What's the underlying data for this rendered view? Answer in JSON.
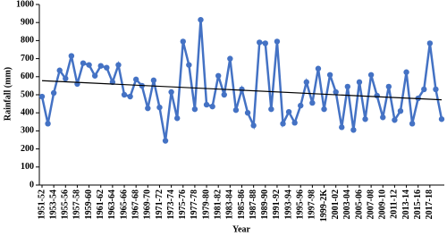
{
  "chart_data": {
    "type": "line",
    "x_label": "Year",
    "y_label": "Rainfall (mm)",
    "categories": [
      "1951-52",
      null,
      "1953-54",
      null,
      "1955-56",
      null,
      "1957-58",
      null,
      "1959-60",
      null,
      "1961-62",
      null,
      "1963-64",
      null,
      "1965-66",
      null,
      "1967-68",
      null,
      "1969-70",
      null,
      "1971-72",
      null,
      "1973-74",
      null,
      "1975-76",
      null,
      "1977-78",
      null,
      "1979-80",
      null,
      "1981-82",
      null,
      "1983-84",
      null,
      "1985-86",
      null,
      "1987-88",
      null,
      "1989-90",
      null,
      "1991-92",
      null,
      "1993-94",
      null,
      "1995-96",
      null,
      "1997-98",
      null,
      "1999-2K",
      null,
      "2001-02",
      null,
      "2003-04",
      null,
      "2005-06",
      null,
      "2007-08",
      null,
      "2009-10",
      null,
      "2011-12",
      null,
      "2013-14",
      null,
      "2015-16",
      null,
      "2017-18",
      null,
      null
    ],
    "series": [
      {
        "color": "#4472c4",
        "values": [
          490,
          340,
          510,
          635,
          590,
          715,
          560,
          675,
          665,
          605,
          660,
          650,
          570,
          665,
          500,
          490,
          585,
          550,
          425,
          580,
          430,
          245,
          515,
          370,
          795,
          665,
          420,
          915,
          445,
          435,
          605,
          500,
          700,
          415,
          530,
          400,
          330,
          790,
          785,
          420,
          795,
          340,
          405,
          345,
          440,
          570,
          455,
          645,
          420,
          610,
          515,
          320,
          545,
          305,
          570,
          365,
          610,
          495,
          375,
          545,
          360,
          410,
          625,
          340,
          480,
          530,
          785,
          530,
          365
        ]
      }
    ],
    "trendline": {
      "values": [
        578,
        472
      ],
      "color": "#000000"
    },
    "ylim": [
      0,
      1000
    ],
    "yticks": [
      0,
      100,
      200,
      300,
      400,
      500,
      600,
      700,
      800,
      900,
      1000
    ]
  }
}
